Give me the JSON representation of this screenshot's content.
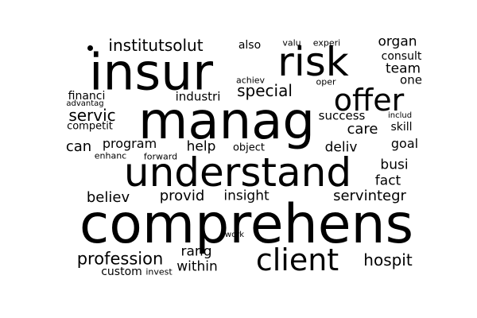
{
  "colors": {
    "background": "#ffffff",
    "text": "#000000"
  },
  "words": [
    "comprehens",
    "understand",
    "manag",
    "insur",
    "risk",
    "client",
    "offer",
    "profession",
    "special",
    "servic",
    "servintegr",
    "provid",
    "insight",
    "believ",
    "program",
    "can",
    "help",
    "object",
    "deliv",
    "care",
    "skill",
    "goal",
    "busi",
    "fact",
    "success",
    "industri",
    "financi",
    "competit",
    "advantag",
    "achiev",
    "oper",
    "team",
    "one",
    "consult",
    "organ",
    "institutsolut",
    "also",
    "valu",
    "experi",
    "includ",
    "enhanc",
    "forward",
    "rang",
    "within",
    "custom",
    "invest",
    "hospit",
    "work"
  ]
}
